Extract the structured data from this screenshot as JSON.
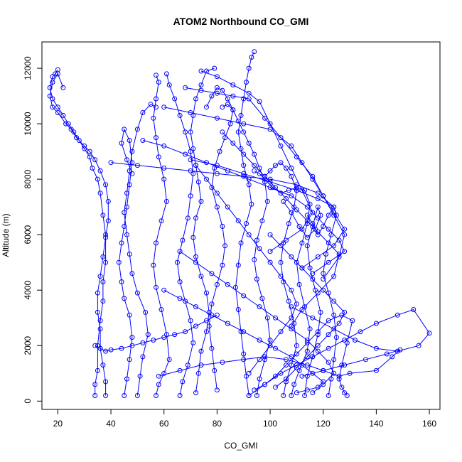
{
  "chart_data": {
    "type": "line",
    "title": "ATOM2 Northbound CO_GMI",
    "xlabel": "CO_GMI",
    "ylabel": "Altitude (m)",
    "xlim": [
      14,
      164
    ],
    "ylim": [
      -300,
      12950
    ],
    "xticks": [
      20,
      40,
      60,
      80,
      100,
      120,
      140,
      160
    ],
    "yticks": [
      0,
      2000,
      4000,
      6000,
      8000,
      10000,
      12000
    ],
    "grid": false,
    "legend": "none",
    "line_color": "#0000ff",
    "series": [
      {
        "x": [
          34,
          34,
          35,
          35,
          36,
          37,
          37,
          38,
          38,
          37,
          36,
          35,
          33,
          32,
          30,
          28,
          26,
          24,
          22,
          20,
          18,
          17,
          18,
          19,
          20
        ],
        "y": [
          200,
          600,
          1100,
          2000,
          2900,
          3600,
          4300,
          5000,
          6000,
          6700,
          7500,
          8000,
          8400,
          8800,
          9100,
          9400,
          9700,
          10000,
          10300,
          10600,
          10900,
          11300,
          11700,
          11800,
          11950
        ]
      },
      {
        "x": [
          38,
          38,
          37,
          36,
          36,
          35,
          35,
          36,
          37,
          38,
          39,
          39,
          38,
          36,
          34,
          32,
          30,
          27,
          25,
          23,
          20,
          18,
          17,
          18,
          20,
          22
        ],
        "y": [
          200,
          700,
          1300,
          1900,
          2600,
          3200,
          3900,
          4500,
          5200,
          5900,
          6500,
          7200,
          7800,
          8300,
          8700,
          9000,
          9200,
          9500,
          9800,
          10000,
          10400,
          10600,
          11000,
          11500,
          11800,
          11300
        ]
      },
      {
        "x": [
          45,
          46,
          47,
          48,
          47,
          45,
          44,
          43,
          44,
          45,
          46,
          47,
          48,
          47,
          45,
          44,
          46,
          48
        ],
        "y": [
          200,
          800,
          1500,
          2300,
          3100,
          3700,
          4300,
          5000,
          5700,
          6300,
          7000,
          7800,
          8600,
          9400,
          9800,
          9300,
          8700,
          8200
        ]
      },
      {
        "x": [
          50,
          51,
          52,
          54,
          53,
          50,
          48,
          47,
          46,
          45,
          46,
          47,
          48,
          50,
          52,
          55,
          57
        ],
        "y": [
          200,
          900,
          1600,
          2400,
          3200,
          3900,
          4600,
          5300,
          6000,
          6800,
          7500,
          8300,
          9000,
          9800,
          10400,
          10700,
          10600
        ]
      },
      {
        "x": [
          57,
          58,
          60,
          62,
          61,
          59,
          57,
          56,
          57,
          59,
          61,
          60,
          58,
          57,
          56,
          57,
          58,
          57
        ],
        "y": [
          200,
          600,
          1000,
          1500,
          2400,
          3300,
          4100,
          4900,
          5700,
          6500,
          7200,
          8000,
          8800,
          9500,
          10200,
          10900,
          11500,
          11750
        ]
      },
      {
        "x": [
          66,
          67,
          69,
          71,
          70,
          68,
          66,
          65,
          67,
          69,
          70,
          71,
          70,
          68,
          66,
          64,
          62,
          61
        ],
        "y": [
          200,
          700,
          1300,
          2100,
          2900,
          3600,
          4300,
          5000,
          5800,
          6600,
          7400,
          8200,
          9000,
          9700,
          10300,
          10900,
          11400,
          11800
        ]
      },
      {
        "x": [
          72,
          73,
          74,
          76,
          77,
          76,
          74,
          72,
          71,
          72,
          74,
          73,
          72,
          71,
          70,
          71,
          72,
          74,
          76,
          79
        ],
        "y": [
          300,
          1000,
          1800,
          2500,
          3200,
          3900,
          4500,
          5200,
          5900,
          6600,
          7200,
          7900,
          8500,
          9100,
          9700,
          10300,
          10900,
          11400,
          11900,
          12000
        ]
      },
      {
        "x": [
          80,
          79,
          78,
          77,
          78,
          80,
          82,
          83,
          82,
          80,
          78,
          79,
          81,
          83,
          85,
          86,
          84,
          82,
          80,
          78,
          76
        ],
        "y": [
          400,
          1100,
          1900,
          2700,
          3500,
          4200,
          4900,
          5600,
          6300,
          7000,
          7700,
          8400,
          9000,
          9500,
          10000,
          10500,
          10900,
          11200,
          11300,
          11000,
          10600
        ]
      },
      {
        "x": [
          92,
          91,
          90,
          89,
          88,
          87,
          88,
          89,
          91,
          93,
          92,
          90,
          89,
          88,
          89,
          90,
          91,
          92,
          93,
          94
        ],
        "y": [
          200,
          900,
          1700,
          2500,
          3300,
          4100,
          4900,
          5700,
          6400,
          7100,
          7800,
          8500,
          9100,
          9700,
          10300,
          10900,
          11500,
          12000,
          12400,
          12600
        ]
      },
      {
        "x": [
          95,
          96,
          98,
          100,
          99,
          97,
          95,
          94,
          95,
          97,
          99,
          98,
          96,
          94,
          92,
          90,
          88,
          86,
          84,
          82
        ],
        "y": [
          200,
          800,
          1500,
          2200,
          3000,
          3700,
          4400,
          5100,
          5800,
          6500,
          7200,
          7900,
          8400,
          8900,
          9300,
          9700,
          10100,
          10500,
          10700,
          10600
        ]
      },
      {
        "x": [
          105,
          106,
          108,
          110,
          109,
          107,
          105,
          104,
          105,
          107,
          109,
          110,
          108,
          106,
          104,
          102,
          100,
          98
        ],
        "y": [
          200,
          700,
          1300,
          2000,
          2800,
          3600,
          4300,
          5000,
          5700,
          6400,
          7000,
          7600,
          8100,
          8400,
          8600,
          8500,
          8300,
          8100
        ]
      },
      {
        "x": [
          108,
          109,
          111,
          114,
          115,
          113,
          111,
          110,
          112,
          114,
          115,
          113,
          110,
          107,
          104,
          101,
          98,
          96,
          94
        ],
        "y": [
          200,
          600,
          1100,
          1800,
          2600,
          3400,
          4200,
          5000,
          5700,
          6400,
          7100,
          7600,
          7700,
          7600,
          7500,
          7700,
          8000,
          8200,
          8300
        ]
      },
      {
        "x": [
          113,
          114,
          116,
          118,
          119,
          117,
          115,
          114,
          116,
          118,
          119,
          117,
          114,
          111,
          108,
          105
        ],
        "y": [
          200,
          900,
          1600,
          2400,
          3200,
          4000,
          4800,
          5600,
          6300,
          7000,
          6700,
          6200,
          5900,
          6300,
          6800,
          7200
        ]
      },
      {
        "x": [
          122,
          123,
          124,
          125,
          124,
          122,
          120,
          121,
          123,
          125,
          124,
          122,
          120,
          118,
          116,
          114
        ],
        "y": [
          200,
          800,
          1500,
          2300,
          3100,
          3900,
          4600,
          5300,
          6000,
          6700,
          7000,
          6700,
          6300,
          6000,
          6400,
          6700
        ]
      },
      {
        "x": [
          129,
          128,
          127,
          126,
          127,
          129,
          131,
          127,
          122,
          118,
          114,
          110,
          106,
          102,
          98,
          94
        ],
        "y": [
          200,
          300,
          500,
          800,
          1300,
          2100,
          2900,
          3100,
          2900,
          2500,
          2100,
          1700,
          1300,
          900,
          600,
          400
        ]
      },
      {
        "x": [
          92,
          98,
          104,
          110,
          116,
          122,
          128,
          134,
          140,
          148,
          154,
          160,
          156,
          148,
          140,
          132,
          124,
          116,
          108
        ],
        "y": [
          200,
          600,
          1000,
          1300,
          1600,
          1900,
          2200,
          2500,
          2800,
          3100,
          3300,
          2450,
          2000,
          1800,
          1900,
          2200,
          2600,
          3000,
          3400
        ]
      },
      {
        "x": [
          58,
          66,
          74,
          82,
          90,
          98,
          106,
          114,
          120,
          126,
          130,
          140,
          146,
          149,
          144,
          136,
          128,
          120,
          112
        ],
        "y": [
          900,
          1100,
          1300,
          1400,
          1500,
          1600,
          1500,
          1300,
          1100,
          900,
          1000,
          1100,
          1600,
          1850,
          1700,
          1500,
          1300,
          1100,
          900
        ]
      },
      {
        "x": [
          40,
          50,
          60,
          70,
          80,
          90,
          100,
          110,
          118,
          124,
          118,
          110,
          100,
          90,
          80,
          70
        ],
        "y": [
          8600,
          8500,
          8400,
          8300,
          8200,
          8100,
          8000,
          7800,
          7500,
          7000,
          7300,
          7600,
          7900,
          8200,
          8500,
          8700
        ]
      },
      {
        "x": [
          52,
          60,
          68,
          76,
          84,
          92,
          100,
          108,
          114,
          118,
          122,
          126,
          128,
          122,
          116
        ],
        "y": [
          9400,
          9200,
          8900,
          8600,
          8300,
          8000,
          7700,
          7400,
          7000,
          6600,
          6200,
          5800,
          5400,
          5000,
          4600
        ]
      },
      {
        "x": [
          60,
          70,
          80,
          90,
          100,
          108,
          112,
          116,
          120,
          124,
          128,
          124,
          118,
          112
        ],
        "y": [
          10600,
          10400,
          10200,
          10000,
          9800,
          9200,
          8600,
          8000,
          7400,
          6800,
          6200,
          5600,
          5200,
          4800
        ]
      },
      {
        "x": [
          68,
          74,
          80,
          86,
          92,
          98,
          104,
          110,
          116,
          120,
          124,
          128,
          126,
          120
        ],
        "y": [
          11300,
          11200,
          11100,
          11000,
          10900,
          10200,
          9500,
          8800,
          8100,
          7400,
          6700,
          6000,
          5200,
          4400
        ]
      },
      {
        "x": [
          74,
          80,
          86,
          92,
          96,
          100,
          104,
          108,
          112,
          116,
          112,
          106,
          100
        ],
        "y": [
          11900,
          11700,
          11400,
          11100,
          10800,
          10000,
          9200,
          8400,
          7600,
          6800,
          6200,
          5800,
          5400
        ]
      },
      {
        "x": [
          60,
          66,
          72,
          78,
          84,
          90,
          96,
          102,
          108,
          112,
          116,
          120,
          118,
          114,
          110
        ],
        "y": [
          4000,
          3700,
          3400,
          3100,
          2800,
          2500,
          2200,
          1900,
          1600,
          1300,
          1000,
          700,
          500,
          400,
          300
        ]
      },
      {
        "x": [
          66,
          72,
          78,
          84,
          90,
          96,
          102,
          108,
          114,
          118,
          122,
          124,
          120,
          116
        ],
        "y": [
          5400,
          5000,
          4600,
          4200,
          3800,
          3400,
          3000,
          2600,
          2200,
          1800,
          1400,
          1000,
          600,
          300
        ]
      },
      {
        "x": [
          100,
          104,
          108,
          112,
          116,
          120,
          124,
          128,
          126,
          122,
          118,
          114,
          110,
          106,
          102
        ],
        "y": [
          6000,
          5600,
          5200,
          4800,
          4400,
          4000,
          3600,
          3200,
          2800,
          2400,
          2000,
          1600,
          1200,
          800,
          500
        ]
      },
      {
        "x": [
          82,
          86,
          90,
          94,
          98,
          102,
          106,
          110,
          114,
          118,
          122,
          126,
          124,
          118,
          112,
          108
        ],
        "y": [
          9700,
          9300,
          8900,
          8500,
          8100,
          7700,
          7300,
          6900,
          6500,
          6100,
          5700,
          5300,
          4500,
          3900,
          3300,
          2700
        ]
      },
      {
        "x": [
          72,
          76,
          80,
          84,
          88,
          92,
          96,
          100,
          104,
          108,
          110,
          108,
          104,
          100,
          96,
          92
        ],
        "y": [
          8500,
          8000,
          7500,
          7000,
          6500,
          6000,
          5500,
          5000,
          4500,
          4000,
          3500,
          3000,
          2500,
          2000,
          1500,
          1000
        ]
      },
      {
        "x": [
          34,
          36,
          38,
          40,
          44,
          48,
          52,
          56,
          60,
          64,
          68,
          72,
          76,
          80
        ],
        "y": [
          2000,
          1900,
          1800,
          1850,
          1900,
          2000,
          2100,
          2200,
          2300,
          2400,
          2500,
          2700,
          2900,
          3100
        ]
      }
    ]
  }
}
